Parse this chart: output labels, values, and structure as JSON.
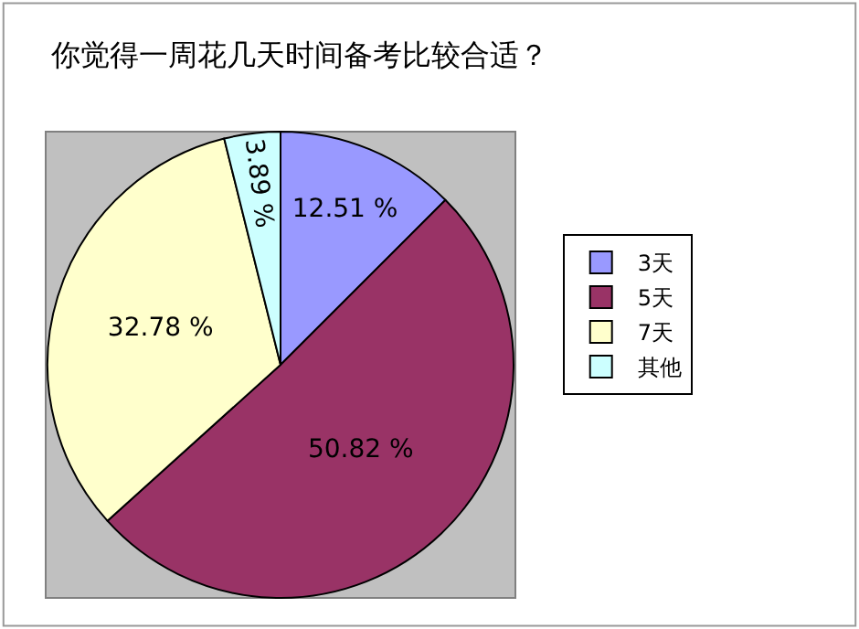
{
  "chart_data": {
    "type": "pie",
    "title": "你觉得一周花几天时间备考比较合适？",
    "categories": [
      "3天",
      "5天",
      "7天",
      "其他"
    ],
    "values": [
      12.51,
      50.82,
      32.78,
      3.89
    ],
    "colors": [
      "#9999ff",
      "#993366",
      "#ffffcc",
      "#ccffff"
    ],
    "value_labels": [
      "12.51 %",
      "50.82 %",
      "32.78 %",
      "3.89 %"
    ],
    "legend": "right"
  }
}
